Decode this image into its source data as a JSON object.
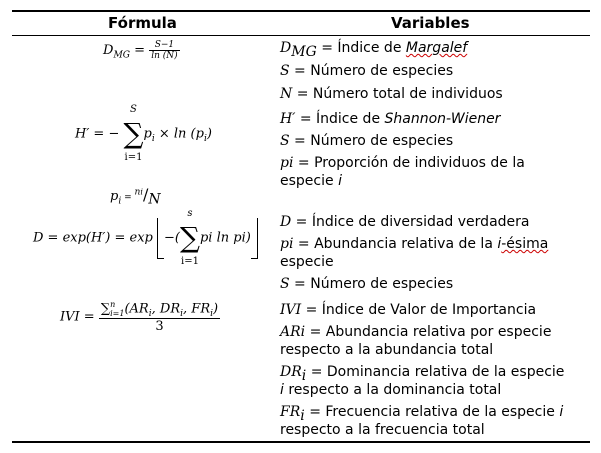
{
  "header": {
    "col1": "Fórmula",
    "col2": "Variables"
  },
  "formulas": {
    "margalef": {
      "lhs": "D",
      "lhs_sub": "MG",
      "eq": "=",
      "num": "S−1",
      "den": "ln (N)"
    },
    "shannon": {
      "lhs": "H′ = −",
      "upper": "S",
      "sigma": "∑",
      "lower": "i=1",
      "body": "p",
      "body_sub": "i",
      "times": " × ln (p",
      "sub2": "i",
      "close": ")"
    },
    "proportion": {
      "lhs": "p",
      "lhs_sub": "i",
      "eq": " = ",
      "num": "n",
      "num_sub": "i",
      "slash": "/",
      "den": "N"
    },
    "true_div": {
      "lhs": "D = exp(H′) = exp",
      "open": "−(",
      "upper": "s",
      "sigma": "∑",
      "lower": "i=1",
      "body": "pi ln pi)"
    },
    "ivi": {
      "lhs": "IVI =",
      "num": "∑",
      "num_sub": "i=1",
      "num_sup": "n",
      "num_rest": "(AR",
      "s1": "i",
      ", DR": ", DR",
      "s2": "i",
      "fr": ", FR",
      "s3": "i",
      "end": ")",
      "den": "3"
    }
  },
  "variables": [
    {
      "sym": "D",
      "sym_sub": "MG",
      "text": " = Índice de ",
      "italic": "Margalef"
    },
    {
      "sym": "S",
      "text": " = Número de especies"
    },
    {
      "sym": "N",
      "text": " = Número total de individuos"
    },
    {
      "sym": "H′",
      "text": " = Índice de ",
      "italic": "Shannon-Wiener"
    },
    {
      "sym": "S",
      "text": " = Número de especies"
    },
    {
      "sym": "pi",
      "text": " = Proporción de individuos de la",
      "line2": "especie ",
      "line2_italic": "i"
    },
    {
      "sym": "D",
      "text": " = Índice de diversidad verdadera"
    },
    {
      "sym": "pi",
      "text": " = Abundancia relativa de la ",
      "italic": "i",
      "text2": "-ésima",
      "line2": "especie"
    },
    {
      "sym": "S",
      "text": " = Número de especies"
    },
    {
      "sym": "IVI",
      "text": " = Índice de Valor de Importancia"
    },
    {
      "sym": "ARi",
      "text": " = Abundancia relativa por especie",
      "line2": "respecto a la abundancia total"
    },
    {
      "sym": "DR",
      "sym_sub": "i",
      "text": " = Dominancia relativa de la especie",
      "line2_italic": "i",
      "line2": " respecto a la dominancia total"
    },
    {
      "sym": "FR",
      "sym_sub": "i",
      "text": " = Frecuencia relativa de la especie ",
      "italic": "i",
      "line2": "respecto a la frecuencia total"
    }
  ]
}
